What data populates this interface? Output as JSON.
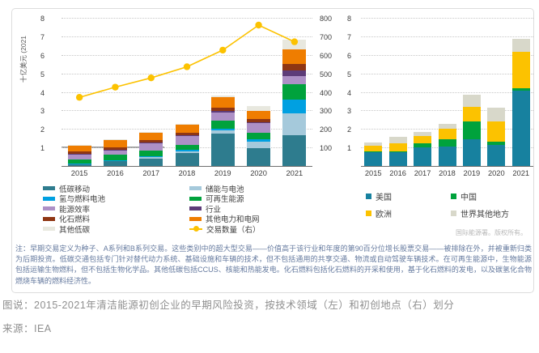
{
  "panel": {
    "attribution": "国际能源署。版权所有。",
    "note": "注：早期交易定义为种子、A系列和B系列交易。这些类别中的超大型交易——价值高于该行业和年度的第90百分位增长股票交易——被排除在外，并被重新归类为后期投资。低碳交通包括专门针对替代动力系统、基础设施和车辆的技术，但不包括通用的共享交通、物流或自动驾驶车辆技术。在可再生能源中，生物能源包括运输生物燃料，但不包括生物化学品。其他低碳包括CCUS、核能和热能发电。化石燃料包括化石燃料的开采和使用，基于化石燃料的发电，以及碳氢化合物燃烧车辆的燃料经济性。"
  },
  "caption": {
    "line1": "图说：2015-2021年清洁能源初创企业的早期风险投资，按技术领域（左）和初创地点（右）划分",
    "line2": "来源：IEA"
  },
  "chart_data": [
    {
      "type": "bar+line",
      "title": "",
      "ylabel": "十亿美元 (2021",
      "categories": [
        "2015",
        "2016",
        "2017",
        "2018",
        "2019",
        "2020",
        "2021"
      ],
      "ylim": [
        0,
        8
      ],
      "ystep": 1,
      "y2lim": [
        0,
        800
      ],
      "y2step": 100,
      "grid": "dotted",
      "swatch": "bar",
      "series": [
        {
          "name": "低碳移动",
          "color": "#2e7c8e",
          "values": [
            0.12,
            0.3,
            0.45,
            0.75,
            1.8,
            1.0,
            1.7
          ]
        },
        {
          "name": "储能与电池",
          "color": "#a5c9db",
          "values": [
            0.05,
            0.05,
            0.1,
            0.1,
            0.15,
            0.35,
            1.2
          ]
        },
        {
          "name": "氢与燃料电池",
          "color": "#00a0e1",
          "values": [
            0.02,
            0.02,
            0.03,
            0.05,
            0.1,
            0.15,
            0.75
          ]
        },
        {
          "name": "可再生能源",
          "color": "#00a23c",
          "values": [
            0.2,
            0.3,
            0.3,
            0.3,
            0.45,
            0.35,
            0.8
          ]
        },
        {
          "name": "能源效率",
          "color": "#ad90c6",
          "values": [
            0.3,
            0.25,
            0.4,
            0.45,
            0.45,
            0.5,
            0.45
          ]
        },
        {
          "name": "行业",
          "color": "#5d3c79",
          "values": [
            0.02,
            0.02,
            0.03,
            0.05,
            0.05,
            0.05,
            0.3
          ]
        },
        {
          "name": "化石燃料",
          "color": "#8f3613",
          "values": [
            0.1,
            0.12,
            0.15,
            0.12,
            0.2,
            0.2,
            0.35
          ]
        },
        {
          "name": "其他电力和电网",
          "color": "#ef7d00",
          "values": [
            0.35,
            0.4,
            0.4,
            0.45,
            0.55,
            0.4,
            0.8
          ]
        },
        {
          "name": "其他低碳",
          "color": "#e8e8df",
          "values": [
            0.04,
            0.04,
            0.04,
            0.03,
            0.1,
            0.3,
            0.5
          ]
        }
      ],
      "line_series": {
        "name": "交易数量（右）",
        "color": "#fcc200",
        "values": [
          375,
          430,
          480,
          540,
          630,
          765,
          675
        ]
      }
    },
    {
      "type": "bar",
      "title": "",
      "categories": [
        "2015",
        "2016",
        "2017",
        "2018",
        "2019",
        "2020",
        "2021"
      ],
      "ylim": [
        0,
        8
      ],
      "ystep": 1,
      "grid": "dotted",
      "swatch": "sq",
      "series": [
        {
          "name": "美国",
          "color": "#17819f",
          "values": [
            0.8,
            0.78,
            1.05,
            1.1,
            1.5,
            1.2,
            4.1
          ]
        },
        {
          "name": "中国",
          "color": "#00a23c",
          "values": [
            0.05,
            0.07,
            0.2,
            0.4,
            0.95,
            0.15,
            0.15
          ]
        },
        {
          "name": "欧洲",
          "color": "#fcc200",
          "values": [
            0.3,
            0.4,
            0.4,
            0.55,
            0.8,
            1.1,
            1.95
          ]
        },
        {
          "name": "世界其他地方",
          "color": "#d8d8ca",
          "values": [
            0.15,
            0.35,
            0.25,
            0.25,
            0.65,
            0.75,
            0.7
          ]
        }
      ]
    }
  ]
}
